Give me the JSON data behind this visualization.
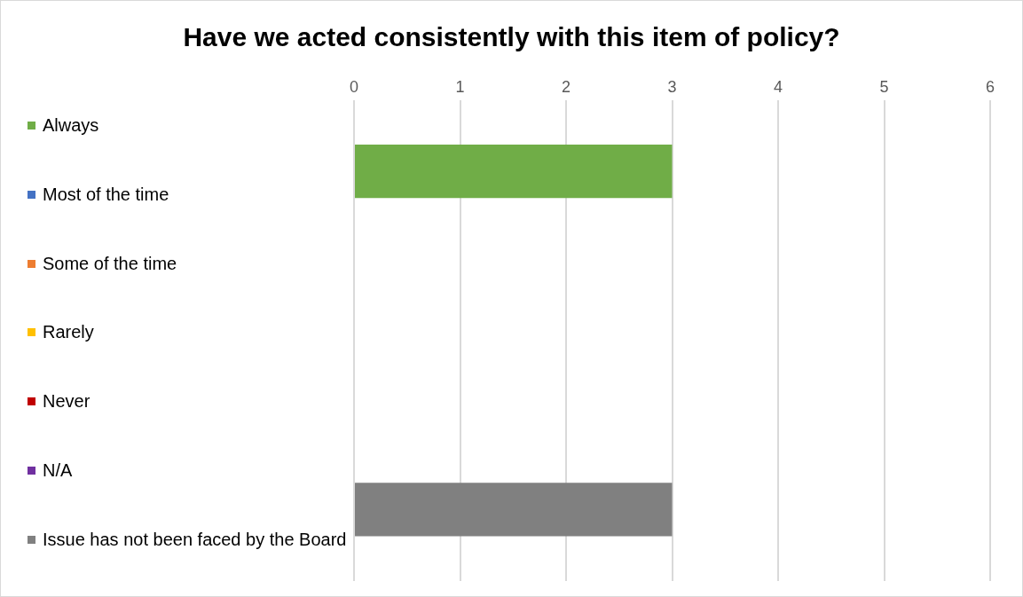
{
  "chart_data": {
    "type": "bar",
    "orientation": "horizontal",
    "title": "Have we acted consistently with this item of policy?",
    "categories": [
      null
    ],
    "series": [
      {
        "name": "Always",
        "color": "#70ad47",
        "values": [
          3
        ]
      },
      {
        "name": "Most of the time",
        "color": "#4472c4",
        "values": [
          0
        ]
      },
      {
        "name": "Some of the time",
        "color": "#ed7d31",
        "values": [
          0
        ]
      },
      {
        "name": "Rarely",
        "color": "#ffc000",
        "values": [
          0
        ]
      },
      {
        "name": "Never",
        "color": "#c00000",
        "values": [
          0
        ]
      },
      {
        "name": "N/A",
        "color": "#7030a0",
        "values": [
          0
        ]
      },
      {
        "name": "Issue has not been faced by the Board",
        "color": "#808080",
        "values": [
          3
        ]
      }
    ],
    "xlim": [
      0,
      6
    ],
    "xticks": [
      0,
      1,
      2,
      3,
      4,
      5,
      6
    ],
    "grid": "x",
    "legend": "left"
  }
}
